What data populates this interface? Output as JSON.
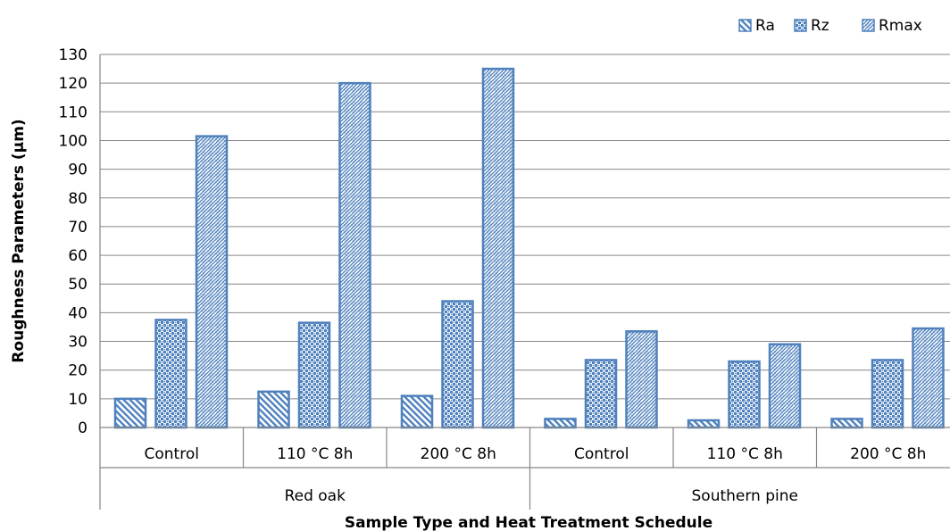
{
  "chart_data": {
    "type": "bar",
    "title": "",
    "xlabel": "Sample Type and Heat Treatment Schedule",
    "ylabel": "Roughness Parameters (µm)",
    "ylim": [
      0,
      130
    ],
    "yticks": [
      0,
      10,
      20,
      30,
      40,
      50,
      60,
      70,
      80,
      90,
      100,
      110,
      120,
      130
    ],
    "grid": true,
    "legend_position": "top-right",
    "groups": [
      {
        "name": "Red oak",
        "categories": [
          "Control",
          "110 °C 8h",
          "200 °C 8h"
        ]
      },
      {
        "name": "Southern pine",
        "categories": [
          "Control",
          "110 °C 8h",
          "200 °C 8h"
        ]
      }
    ],
    "categories": [
      "Control",
      "110 °C 8h",
      "200 °C 8h",
      "Control",
      "110 °C 8h",
      "200 °C 8h"
    ],
    "series": [
      {
        "name": "Ra",
        "pattern": "diagonal-hatch",
        "values": [
          10,
          12.5,
          11,
          3,
          2.5,
          3
        ]
      },
      {
        "name": "Rz",
        "pattern": "checker",
        "values": [
          37.5,
          36.5,
          44,
          23.5,
          23,
          23.5
        ]
      },
      {
        "name": "Rmax",
        "pattern": "weave",
        "values": [
          101.5,
          120,
          125,
          33.5,
          29,
          34.5
        ]
      }
    ],
    "colors": {
      "bar_stroke": "#4f81bd",
      "pattern_fill": "#4f81bd",
      "grid": "#868686",
      "axis": "#868686"
    }
  }
}
